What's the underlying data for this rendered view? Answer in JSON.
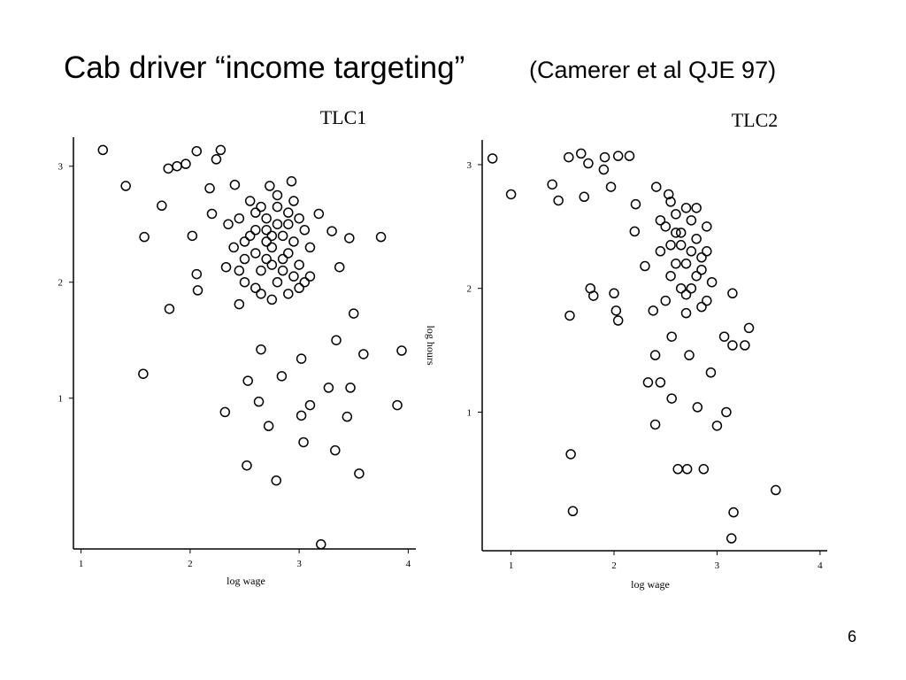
{
  "title": "Cab driver “income targeting”",
  "subtitle": "(Camerer et al QJE 97)",
  "page_number": "6",
  "chart_data": [
    {
      "type": "scatter",
      "title": "TLC1",
      "x_label": "log wage",
      "y_label": "log hours",
      "color": "#000000",
      "xlim": [
        0.93,
        4.07
      ],
      "ylim": [
        -0.3,
        3.25
      ],
      "xticks": [
        1,
        2,
        3,
        4
      ],
      "yticks": [
        1,
        2,
        3
      ],
      "x": [
        1.2,
        1.41,
        1.58,
        1.74,
        1.81,
        1.57,
        1.8,
        1.88,
        1.96,
        2.06,
        2.28,
        2.24,
        2.18,
        2.41,
        2.02,
        2.06,
        2.07,
        2.32,
        2.52,
        2.63,
        2.72,
        2.79,
        3.04,
        3.2,
        3.1,
        3.02,
        3.33,
        3.55,
        3.44,
        3.47,
        3.27,
        3.59,
        3.75,
        3.94,
        3.9,
        2.53,
        2.65,
        2.84,
        3.02,
        3.34,
        3.5,
        3.37,
        3.46,
        3.3,
        2.45,
        2.33,
        2.2,
        2.73,
        2.93,
        3.18,
        2.35,
        2.4,
        2.45,
        2.5,
        2.55,
        2.6,
        2.65,
        2.7,
        2.75,
        2.8,
        2.85,
        2.9,
        2.95,
        3.0,
        3.05,
        3.1,
        2.5,
        2.6,
        2.7,
        2.8,
        2.9,
        3.0,
        2.55,
        2.65,
        2.75,
        2.85,
        2.95,
        2.45,
        2.6,
        2.7,
        2.8,
        2.9,
        3.05,
        2.65,
        2.75,
        2.85,
        2.5,
        2.7,
        2.9,
        3.1,
        2.6,
        2.8,
        3.0,
        2.75,
        2.95
      ],
      "values": [
        3.14,
        2.83,
        2.39,
        2.66,
        1.77,
        1.21,
        2.98,
        3.0,
        3.02,
        3.13,
        3.14,
        3.06,
        2.81,
        2.84,
        2.4,
        2.07,
        1.93,
        0.88,
        0.42,
        0.97,
        0.76,
        0.29,
        0.62,
        -0.26,
        0.94,
        0.85,
        0.55,
        0.35,
        0.84,
        1.09,
        1.09,
        1.38,
        2.39,
        1.41,
        0.94,
        1.15,
        1.42,
        1.19,
        1.34,
        1.5,
        1.73,
        2.13,
        2.38,
        2.44,
        1.81,
        2.13,
        2.59,
        2.83,
        2.87,
        2.59,
        2.5,
        2.3,
        2.55,
        2.2,
        2.4,
        2.6,
        2.1,
        2.45,
        2.3,
        2.65,
        2.2,
        2.5,
        2.35,
        2.15,
        2.45,
        2.3,
        2.0,
        2.25,
        2.55,
        2.0,
        2.6,
        1.95,
        2.7,
        1.9,
        2.15,
        2.4,
        2.05,
        2.1,
        2.45,
        2.35,
        2.5,
        2.25,
        2.0,
        2.65,
        1.85,
        2.1,
        2.35,
        2.2,
        1.9,
        2.05,
        1.95,
        2.75,
        2.55,
        2.4,
        2.7
      ]
    },
    {
      "type": "scatter",
      "title": "TLC2",
      "x_label": "log wage",
      "color": "#000000",
      "xlim": [
        0.72,
        4.07
      ],
      "ylim": [
        -0.12,
        3.2
      ],
      "xticks": [
        1,
        2,
        3,
        4
      ],
      "yticks": [
        1,
        2,
        3
      ],
      "x": [
        0.82,
        1.0,
        1.4,
        1.46,
        1.56,
        1.68,
        1.75,
        1.71,
        1.91,
        1.9,
        1.97,
        2.04,
        2.15,
        1.57,
        1.77,
        1.8,
        2.0,
        2.02,
        2.04,
        1.58,
        1.6,
        2.4,
        2.33,
        2.45,
        2.62,
        2.71,
        2.87,
        3.09,
        3.0,
        3.16,
        3.14,
        3.57,
        3.31,
        3.27,
        3.15,
        3.07,
        3.15,
        2.21,
        2.2,
        2.3,
        2.38,
        2.4,
        2.56,
        2.81,
        2.94,
        2.73,
        2.56,
        2.41,
        2.53,
        2.45,
        2.5,
        2.55,
        2.6,
        2.65,
        2.7,
        2.75,
        2.8,
        2.85,
        2.9,
        2.95,
        2.5,
        2.6,
        2.7,
        2.8,
        2.9,
        2.55,
        2.65,
        2.75,
        2.85,
        2.45,
        2.6,
        2.7,
        2.8,
        2.9,
        2.65,
        2.75,
        2.55,
        2.85,
        2.7
      ],
      "values": [
        3.05,
        2.76,
        2.84,
        2.71,
        3.06,
        3.09,
        3.01,
        2.74,
        3.06,
        2.96,
        2.82,
        3.07,
        3.07,
        1.78,
        2.0,
        1.94,
        1.96,
        1.82,
        1.74,
        0.66,
        0.2,
        0.9,
        1.24,
        1.24,
        0.54,
        0.54,
        0.54,
        1.0,
        0.89,
        0.19,
        -0.02,
        0.37,
        1.68,
        1.54,
        1.54,
        1.61,
        1.96,
        2.68,
        2.46,
        2.18,
        1.82,
        1.46,
        1.11,
        1.04,
        1.32,
        1.46,
        1.61,
        2.82,
        2.76,
        2.3,
        2.5,
        2.1,
        2.6,
        2.35,
        2.2,
        2.55,
        2.4,
        2.15,
        2.3,
        2.05,
        1.9,
        2.45,
        1.95,
        2.65,
        2.5,
        2.7,
        2.0,
        2.3,
        1.85,
        2.55,
        2.2,
        2.65,
        2.1,
        1.9,
        2.45,
        2.0,
        2.35,
        2.25,
        1.8
      ]
    }
  ]
}
